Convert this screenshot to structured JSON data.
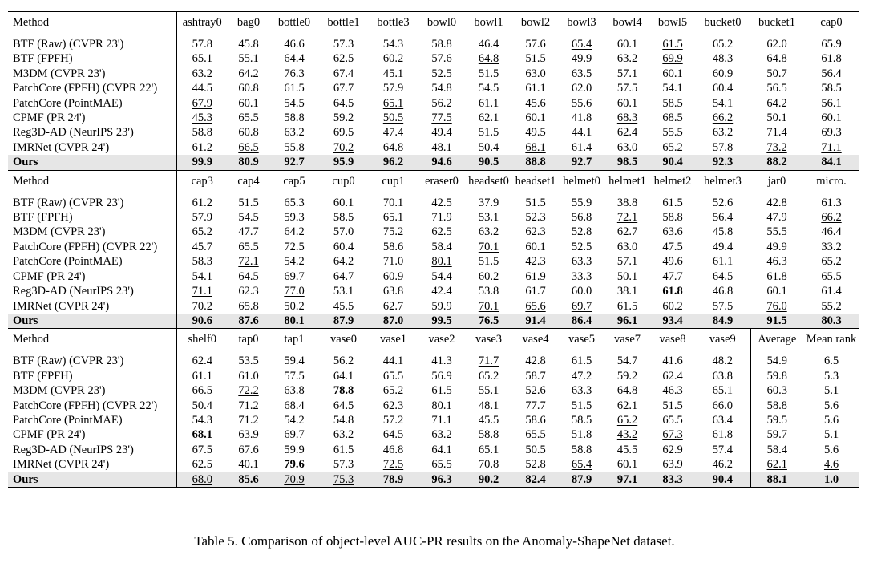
{
  "method_label": "Method",
  "methods": [
    "BTF (Raw) (CVPR 23')",
    "BTF (FPFH)",
    "M3DM (CVPR 23')",
    "PatchCore (FPFH) (CVPR 22')",
    "PatchCore (PointMAE)",
    "CPMF (PR 24')",
    "Reg3D-AD (NeurIPS 23')",
    "IMRNet (CVPR 24')",
    "Ours"
  ],
  "blocks": [
    {
      "columns": [
        "ashtray0",
        "bag0",
        "bottle0",
        "bottle1",
        "bottle3",
        "bowl0",
        "bowl1",
        "bowl2",
        "bowl3",
        "bowl4",
        "bowl5",
        "bucket0",
        "bucket1",
        "cap0"
      ],
      "rows": [
        [
          "57.8",
          "45.8",
          "46.6",
          "57.3",
          "54.3",
          "58.8",
          "46.4",
          "57.6",
          "65.4",
          "60.1",
          "61.5",
          "65.2",
          "62.0",
          "65.9"
        ],
        [
          "65.1",
          "55.1",
          "64.4",
          "62.5",
          "60.2",
          "57.6",
          "64.8",
          "51.5",
          "49.9",
          "63.2",
          "69.9",
          "48.3",
          "64.8",
          "61.8"
        ],
        [
          "63.2",
          "64.2",
          "76.3",
          "67.4",
          "45.1",
          "52.5",
          "51.5",
          "63.0",
          "63.5",
          "57.1",
          "60.1",
          "60.9",
          "50.7",
          "56.4"
        ],
        [
          "44.5",
          "60.8",
          "61.5",
          "67.7",
          "57.9",
          "54.8",
          "54.5",
          "61.1",
          "62.0",
          "57.5",
          "54.1",
          "60.4",
          "56.5",
          "58.5"
        ],
        [
          "67.9",
          "60.1",
          "54.5",
          "64.5",
          "65.1",
          "56.2",
          "61.1",
          "45.6",
          "55.6",
          "60.1",
          "58.5",
          "54.1",
          "64.2",
          "56.1"
        ],
        [
          "45.3",
          "65.5",
          "58.8",
          "59.2",
          "50.5",
          "77.5",
          "62.1",
          "60.1",
          "41.8",
          "68.3",
          "68.5",
          "66.2",
          "50.1",
          "60.1"
        ],
        [
          "58.8",
          "60.8",
          "63.2",
          "69.5",
          "47.4",
          "49.4",
          "51.5",
          "49.5",
          "44.1",
          "62.4",
          "55.5",
          "63.2",
          "71.4",
          "69.3"
        ],
        [
          "61.2",
          "66.5",
          "55.8",
          "70.2",
          "64.8",
          "48.1",
          "50.4",
          "68.1",
          "61.4",
          "63.0",
          "65.2",
          "57.8",
          "73.2",
          "71.1"
        ],
        [
          "99.9",
          "80.9",
          "92.7",
          "95.9",
          "96.2",
          "94.6",
          "90.5",
          "88.8",
          "92.7",
          "98.5",
          "90.4",
          "92.3",
          "88.2",
          "84.1"
        ]
      ]
    },
    {
      "columns": [
        "cap3",
        "cap4",
        "cap5",
        "cup0",
        "cup1",
        "eraser0",
        "headset0",
        "headset1",
        "helmet0",
        "helmet1",
        "helmet2",
        "helmet3",
        "jar0",
        "micro."
      ],
      "rows": [
        [
          "61.2",
          "51.5",
          "65.3",
          "60.1",
          "70.1",
          "42.5",
          "37.9",
          "51.5",
          "55.9",
          "38.8",
          "61.5",
          "52.6",
          "42.8",
          "61.3"
        ],
        [
          "57.9",
          "54.5",
          "59.3",
          "58.5",
          "65.1",
          "71.9",
          "53.1",
          "52.3",
          "56.8",
          "72.1",
          "58.8",
          "56.4",
          "47.9",
          "66.2"
        ],
        [
          "65.2",
          "47.7",
          "64.2",
          "57.0",
          "75.2",
          "62.5",
          "63.2",
          "62.3",
          "52.8",
          "62.7",
          "63.6",
          "45.8",
          "55.5",
          "46.4"
        ],
        [
          "45.7",
          "65.5",
          "72.5",
          "60.4",
          "58.6",
          "58.4",
          "70.1",
          "60.1",
          "52.5",
          "63.0",
          "47.5",
          "49.4",
          "49.9",
          "33.2"
        ],
        [
          "58.3",
          "72.1",
          "54.2",
          "64.2",
          "71.0",
          "80.1",
          "51.5",
          "42.3",
          "63.3",
          "57.1",
          "49.6",
          "61.1",
          "46.3",
          "65.2"
        ],
        [
          "54.1",
          "64.5",
          "69.7",
          "64.7",
          "60.9",
          "54.4",
          "60.2",
          "61.9",
          "33.3",
          "50.1",
          "47.7",
          "64.5",
          "61.8",
          "65.5"
        ],
        [
          "71.1",
          "62.3",
          "77.0",
          "53.1",
          "63.8",
          "42.4",
          "53.8",
          "61.7",
          "60.0",
          "38.1",
          "61.8",
          "46.8",
          "60.1",
          "61.4"
        ],
        [
          "70.2",
          "65.8",
          "50.2",
          "45.5",
          "62.7",
          "59.9",
          "70.1",
          "65.6",
          "69.7",
          "61.5",
          "60.2",
          "57.5",
          "76.0",
          "55.2"
        ],
        [
          "90.6",
          "87.6",
          "80.1",
          "87.9",
          "87.0",
          "99.5",
          "76.5",
          "91.4",
          "86.4",
          "96.1",
          "93.4",
          "84.9",
          "91.5",
          "80.3"
        ]
      ]
    },
    {
      "columns": [
        "shelf0",
        "tap0",
        "tap1",
        "vase0",
        "vase1",
        "vase2",
        "vase3",
        "vase4",
        "vase5",
        "vase7",
        "vase8",
        "vase9",
        "Average",
        "Mean rank"
      ],
      "rows": [
        [
          "62.4",
          "53.5",
          "59.4",
          "56.2",
          "44.1",
          "41.3",
          "71.7",
          "42.8",
          "61.5",
          "54.7",
          "41.6",
          "48.2",
          "54.9",
          "6.5"
        ],
        [
          "61.1",
          "61.0",
          "57.5",
          "64.1",
          "65.5",
          "56.9",
          "65.2",
          "58.7",
          "47.2",
          "59.2",
          "62.4",
          "63.8",
          "59.8",
          "5.3"
        ],
        [
          "66.5",
          "72.2",
          "63.8",
          "78.8",
          "65.2",
          "61.5",
          "55.1",
          "52.6",
          "63.3",
          "64.8",
          "46.3",
          "65.1",
          "60.3",
          "5.1"
        ],
        [
          "50.4",
          "71.2",
          "68.4",
          "64.5",
          "62.3",
          "80.1",
          "48.1",
          "77.7",
          "51.5",
          "62.1",
          "51.5",
          "66.0",
          "58.8",
          "5.6"
        ],
        [
          "54.3",
          "71.2",
          "54.2",
          "54.8",
          "57.2",
          "71.1",
          "45.5",
          "58.6",
          "58.5",
          "65.2",
          "65.5",
          "63.4",
          "59.5",
          "5.6"
        ],
        [
          "68.1",
          "63.9",
          "69.7",
          "63.2",
          "64.5",
          "63.2",
          "58.8",
          "65.5",
          "51.8",
          "43.2",
          "67.3",
          "61.8",
          "59.7",
          "5.1"
        ],
        [
          "67.5",
          "67.6",
          "59.9",
          "61.5",
          "46.8",
          "64.1",
          "65.1",
          "50.5",
          "58.8",
          "45.5",
          "62.9",
          "57.4",
          "58.4",
          "5.6"
        ],
        [
          "62.5",
          "40.1",
          "79.6",
          "57.3",
          "72.5",
          "65.5",
          "70.8",
          "52.8",
          "65.4",
          "60.1",
          "63.9",
          "46.2",
          "62.1",
          "4.6"
        ],
        [
          "68.0",
          "85.6",
          "70.9",
          "75.3",
          "78.9",
          "96.3",
          "90.2",
          "82.4",
          "87.9",
          "97.1",
          "83.3",
          "90.4",
          "88.1",
          "1.0"
        ]
      ]
    }
  ],
  "underlined": [
    [
      [
        0,
        8
      ],
      [
        0,
        10
      ],
      [
        1,
        6
      ],
      [
        1,
        10
      ],
      [
        2,
        2
      ],
      [
        2,
        6
      ],
      [
        2,
        10
      ],
      [
        4,
        0
      ],
      [
        4,
        4
      ],
      [
        5,
        0
      ],
      [
        5,
        4
      ],
      [
        5,
        5
      ],
      [
        5,
        9
      ],
      [
        5,
        11
      ],
      [
        7,
        1
      ],
      [
        7,
        3
      ],
      [
        7,
        7
      ],
      [
        7,
        12
      ],
      [
        7,
        13
      ]
    ],
    [
      [
        1,
        9
      ],
      [
        1,
        13
      ],
      [
        2,
        4
      ],
      [
        2,
        10
      ],
      [
        3,
        6
      ],
      [
        4,
        1
      ],
      [
        4,
        5
      ],
      [
        5,
        3
      ],
      [
        5,
        11
      ],
      [
        6,
        0
      ],
      [
        6,
        2
      ],
      [
        7,
        6
      ],
      [
        7,
        7
      ],
      [
        7,
        8
      ],
      [
        7,
        12
      ]
    ],
    [
      [
        0,
        6
      ],
      [
        2,
        1
      ],
      [
        3,
        5
      ],
      [
        3,
        7
      ],
      [
        3,
        11
      ],
      [
        4,
        9
      ],
      [
        5,
        9
      ],
      [
        5,
        10
      ],
      [
        7,
        4
      ],
      [
        7,
        8
      ],
      [
        7,
        12
      ],
      [
        7,
        13
      ],
      [
        8,
        0
      ],
      [
        8,
        2
      ],
      [
        8,
        3
      ]
    ]
  ],
  "bold_extra": [
    [],
    [
      [
        6,
        10
      ]
    ],
    [
      [
        2,
        3
      ],
      [
        5,
        0
      ],
      [
        7,
        2
      ]
    ]
  ],
  "plain_in_ours": [
    [],
    [],
    [
      [
        8,
        0
      ],
      [
        8,
        2
      ],
      [
        8,
        3
      ]
    ]
  ],
  "caption": "Table 5. Comparison of object-level AUC-PR results on the Anomaly-ShapeNet dataset."
}
